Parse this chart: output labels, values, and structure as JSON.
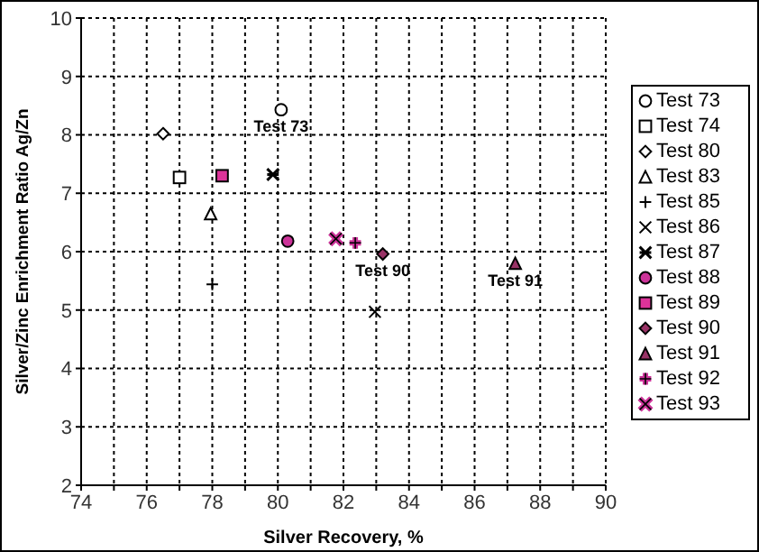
{
  "chart_data": {
    "type": "scatter",
    "xlabel": "Silver Recovery, %",
    "ylabel": "Silver/Zinc Enrichment Ratio Ag/Zn",
    "xlim": [
      74,
      90
    ],
    "ylim": [
      2,
      10
    ],
    "xticks": [
      74,
      {
        "value": 75,
        "label": null
      },
      76,
      {
        "value": 77,
        "label": null
      },
      78,
      {
        "value": 79,
        "label": null
      },
      80,
      {
        "value": 81,
        "label": null
      },
      82,
      {
        "value": 83,
        "label": null
      },
      84,
      {
        "value": 85,
        "label": null
      },
      86,
      {
        "value": 87,
        "label": null
      },
      88,
      {
        "value": 89,
        "label": null
      },
      90
    ],
    "yticks": [
      2,
      3,
      4,
      5,
      6,
      7,
      8,
      9,
      10
    ],
    "grid": true,
    "legend": "right",
    "series": [
      {
        "name": "Test 73",
        "color": "#000000",
        "marker": "circle",
        "x": [
          80.1
        ],
        "values": [
          8.43
        ]
      },
      {
        "name": "Test 74",
        "color": "#000000",
        "marker": "square",
        "x": [
          77.0
        ],
        "values": [
          7.27
        ]
      },
      {
        "name": "Test 80",
        "color": "#000000",
        "marker": "diamond",
        "x": [
          76.5
        ],
        "values": [
          8.02
        ]
      },
      {
        "name": "Test 83",
        "color": "#000000",
        "marker": "triangle",
        "x": [
          77.95
        ],
        "values": [
          6.65
        ]
      },
      {
        "name": "Test 85",
        "color": "#000000",
        "marker": "cross",
        "x": [
          78.0
        ],
        "values": [
          5.44
        ]
      },
      {
        "name": "Test 86",
        "color": "#000000",
        "marker": "cross",
        "x": [
          82.96
        ],
        "values": [
          4.97
        ]
      },
      {
        "name": "Test 87",
        "color": "#000000",
        "marker": "cross",
        "x": [
          79.85
        ],
        "values": [
          7.32
        ]
      },
      {
        "name": "Test 88",
        "color": "#cc3399",
        "marker": "circle",
        "x": [
          80.3
        ],
        "values": [
          6.18
        ]
      },
      {
        "name": "Test 89",
        "color": "#dd3399",
        "marker": "square",
        "x": [
          78.3
        ],
        "values": [
          7.3
        ]
      },
      {
        "name": "Test 90",
        "color": "#993366",
        "marker": "diamond",
        "x": [
          83.2
        ],
        "values": [
          5.96
        ]
      },
      {
        "name": "Test 91",
        "color": "#993366",
        "marker": "triangle",
        "x": [
          87.24
        ],
        "values": [
          5.8
        ]
      },
      {
        "name": "Test 92",
        "color": "#cc3399",
        "marker": "cross",
        "x": [
          82.36
        ],
        "values": [
          6.15
        ]
      },
      {
        "name": "Test 93",
        "color": "#cc3399",
        "marker": "cross",
        "x": [
          81.77
        ],
        "values": [
          6.22
        ]
      }
    ],
    "annotations": [
      {
        "text": "Test 73",
        "x": 80.1,
        "y": 8.43
      },
      {
        "text": "Test 90",
        "x": 83.2,
        "y": 5.96
      },
      {
        "text": "Test 91",
        "x": 87.24,
        "y": 5.8
      }
    ]
  }
}
